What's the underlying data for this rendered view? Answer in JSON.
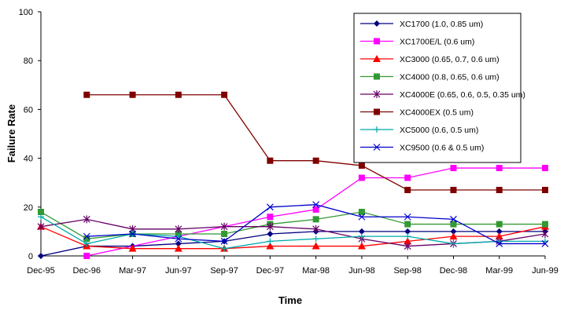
{
  "chart_data": {
    "type": "line",
    "title": "",
    "xlabel": "Time",
    "ylabel": "Failure Rate",
    "ylim": [
      0,
      100
    ],
    "yticks": [
      0,
      20,
      40,
      60,
      80,
      100
    ],
    "grid": false,
    "legend_position": "top-right",
    "categories": [
      "Dec-95",
      "Dec-96",
      "Mar-97",
      "Jun-97",
      "Sep-97",
      "Dec-97",
      "Mar-98",
      "Jun-98",
      "Sep-98",
      "Dec-98",
      "Mar-99",
      "Jun-99"
    ],
    "series": [
      {
        "name": "XC1700 (1.0, 0.85 um)",
        "color": "#000080",
        "marker": "diamond",
        "values": [
          0,
          4,
          4,
          5,
          6,
          9,
          10,
          10,
          10,
          10,
          10,
          10
        ]
      },
      {
        "name": "XC1700E/L (0.6 um)",
        "color": "#ff00ff",
        "marker": "square",
        "values": [
          null,
          0,
          null,
          null,
          null,
          16,
          19,
          32,
          32,
          36,
          36,
          36
        ]
      },
      {
        "name": "XC3000 (0.65, 0.7, 0.6 um)",
        "color": "#ff0000",
        "marker": "triangle",
        "values": [
          12,
          4,
          3,
          3,
          3,
          4,
          4,
          4,
          6,
          8,
          8,
          12
        ]
      },
      {
        "name": "XC4000 (0.8, 0.65, 0.6 um)",
        "color": "#339933",
        "marker": "square",
        "values": [
          18,
          7,
          9,
          9,
          9,
          13,
          15,
          18,
          13,
          13,
          13,
          13
        ]
      },
      {
        "name": "XC4000E (0.65, 0.6, 0.5, 0.35 um)",
        "color": "#660066",
        "marker": "star",
        "values": [
          12,
          15,
          11,
          11,
          12,
          12,
          11,
          7,
          4,
          5,
          6,
          9
        ]
      },
      {
        "name": "XC4000EX (0.5 um)",
        "color": "#800000",
        "marker": "square",
        "values": [
          null,
          66,
          66,
          66,
          66,
          39,
          39,
          37,
          27,
          27,
          27,
          27
        ]
      },
      {
        "name": "XC5000 (0.6, 0.5 um)",
        "color": "#00aaaa",
        "marker": "plus",
        "values": [
          16,
          5,
          9,
          8,
          3,
          6,
          7,
          8,
          8,
          5,
          6,
          6
        ]
      },
      {
        "name": "XC9500 (0.6 & 0.5 um)",
        "color": "#0000cc",
        "marker": "x",
        "values": [
          null,
          8,
          9,
          7,
          6,
          20,
          21,
          16,
          16,
          15,
          5,
          5
        ]
      }
    ]
  }
}
